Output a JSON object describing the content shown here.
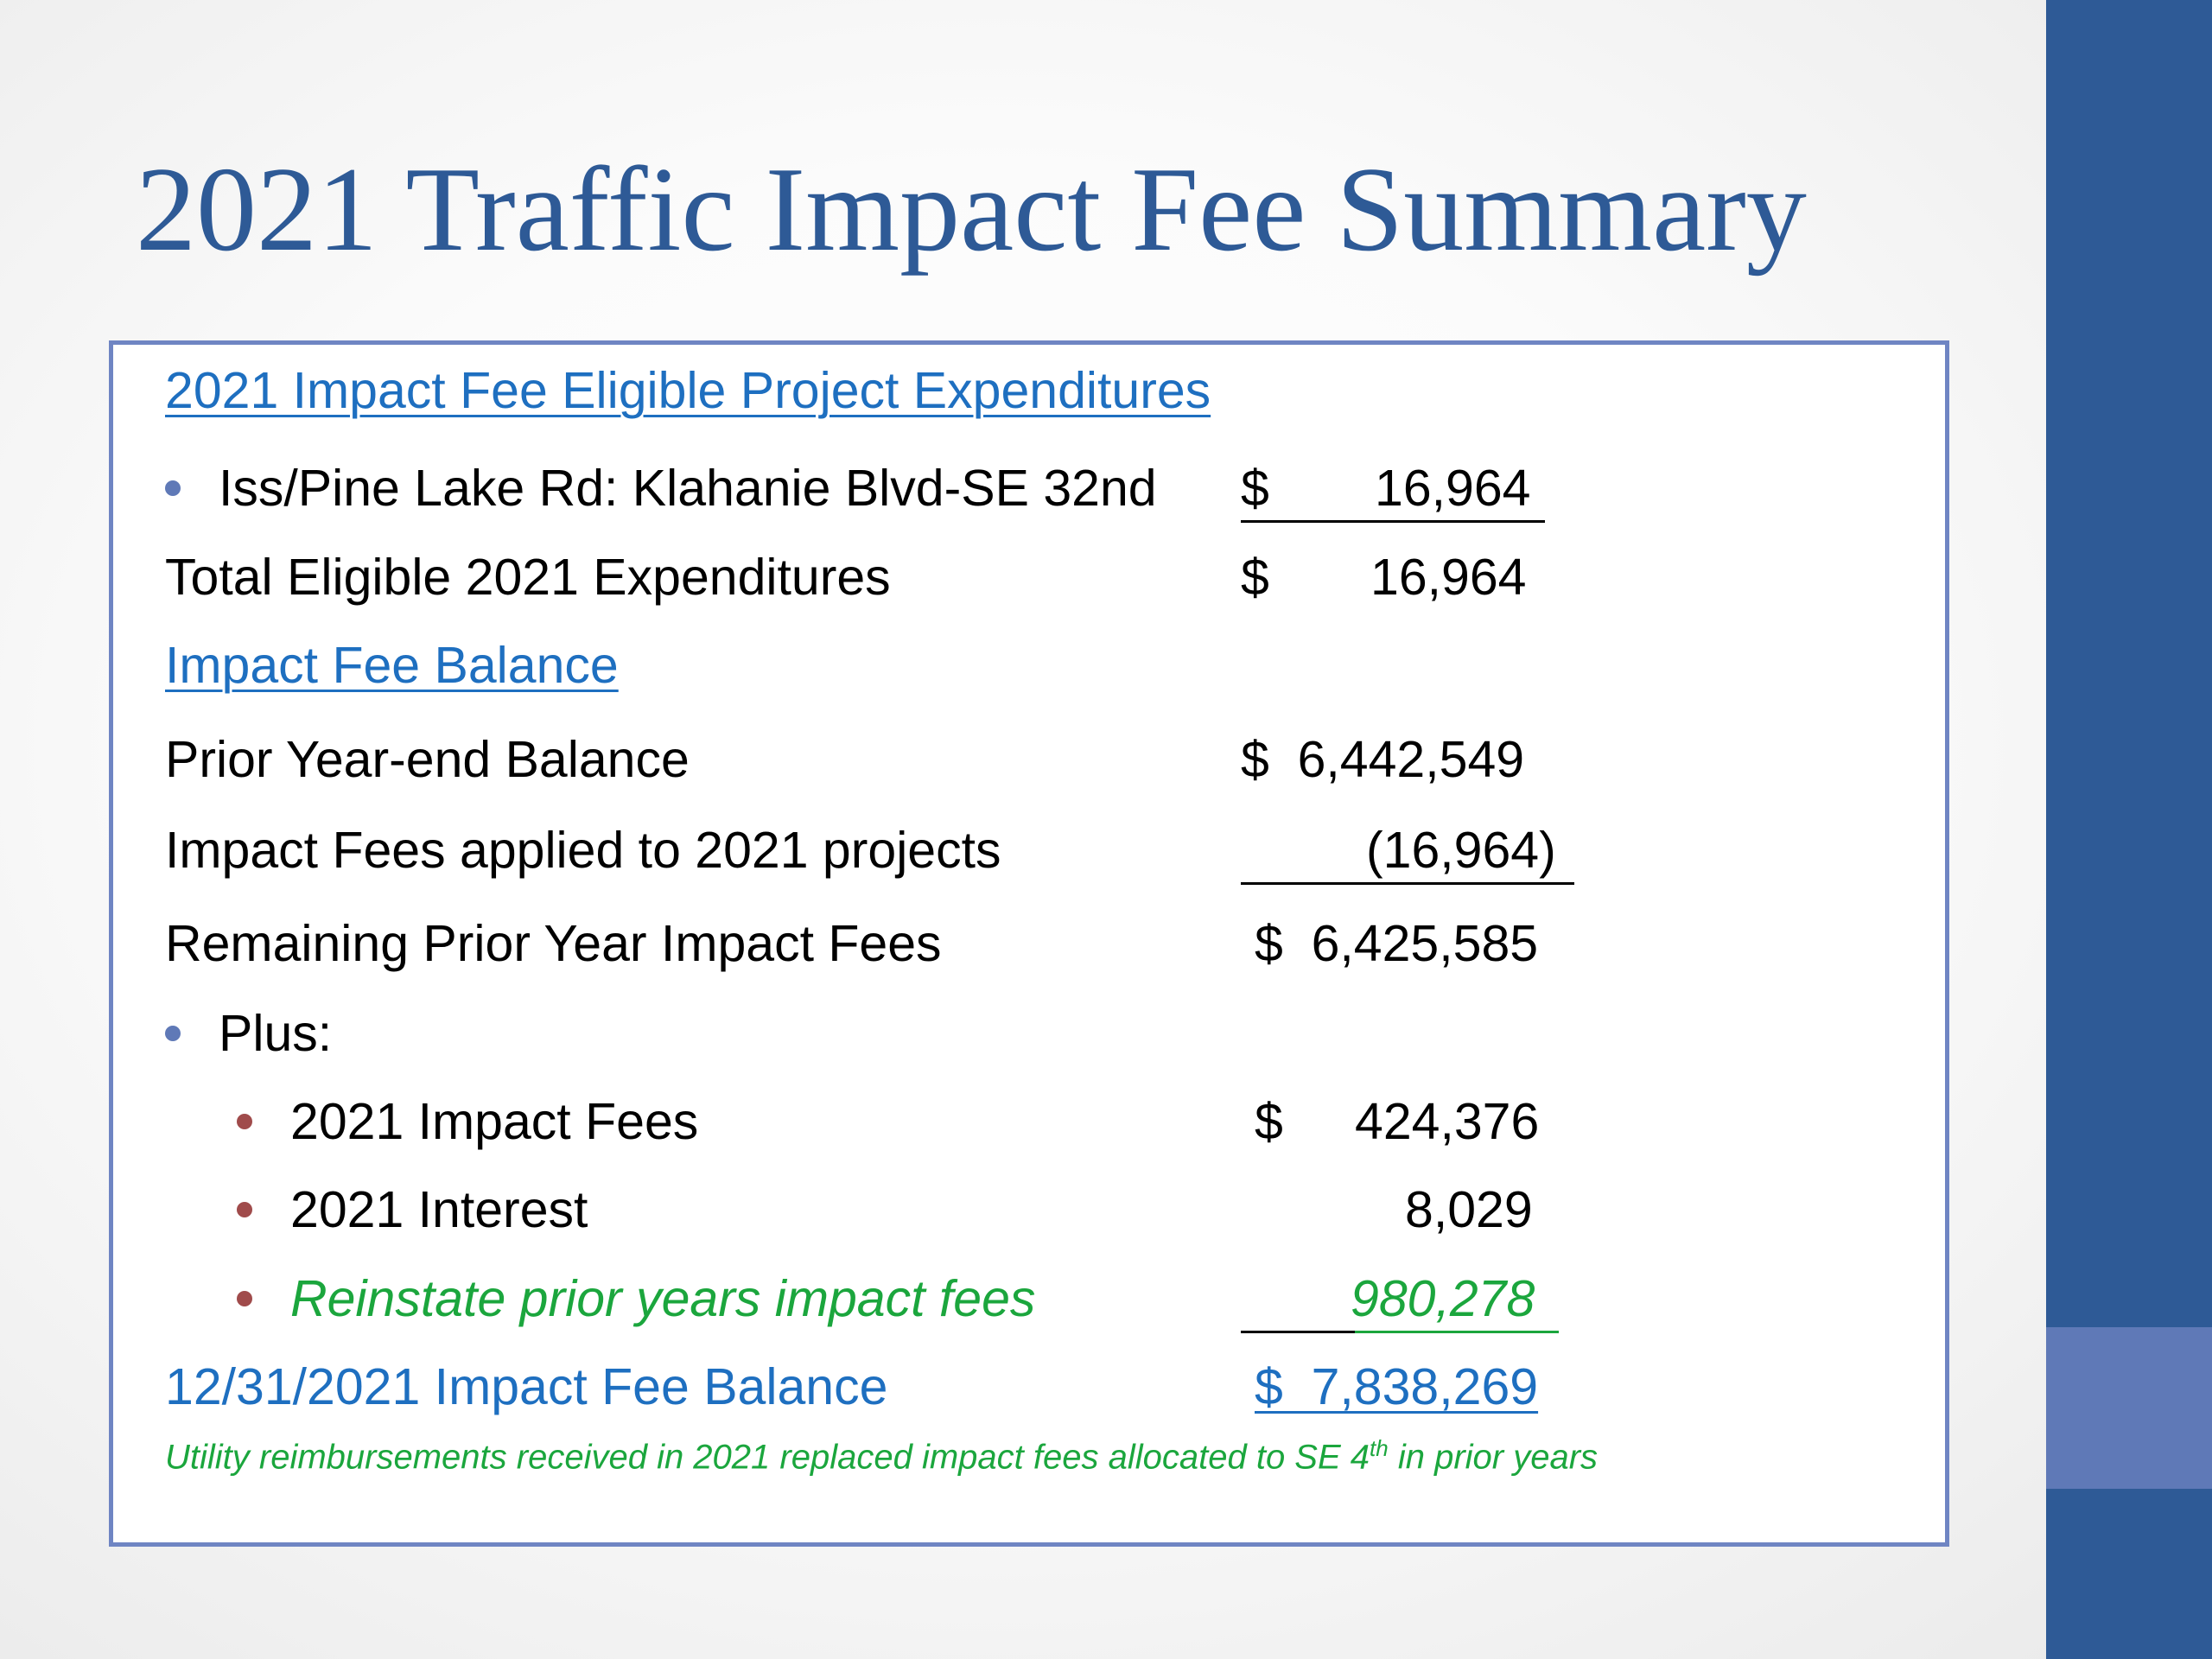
{
  "title": "2021 Traffic Impact Fee Summary",
  "sections": {
    "expenditures_heading": "2021 Impact Fee Eligible Project Expenditures",
    "balance_heading": "Impact Fee Balance"
  },
  "expenditures": {
    "project_label": "Iss/Pine Lake Rd: Klahanie Blvd-SE 32nd",
    "project_dollar": "$",
    "project_amount": "16,964",
    "total_label": "Total Eligible 2021 Expenditures",
    "total_dollar": "$",
    "total_amount": "16,964"
  },
  "balance": {
    "prior_label": "Prior Year-end Balance",
    "prior_amount": "$  6,442,549",
    "applied_label": "Impact Fees applied to 2021 projects",
    "applied_amount": "(16,964)",
    "remaining_label": "Remaining Prior Year Impact Fees",
    "remaining_amount": "$  6,425,585",
    "plus_label": "Plus:",
    "fees_label": "2021 Impact Fees",
    "fees_dollar": "$",
    "fees_amount": "424,376",
    "interest_label": "2021 Interest",
    "interest_amount": "8,029",
    "reinstate_label": "Reinstate prior years impact fees",
    "reinstate_amount": "980,278",
    "final_label": "12/31/2021 Impact Fee Balance",
    "final_amount": "$  7,838,269"
  },
  "footnote": {
    "before": "Utility reimbursements received in 2021 replaced impact fees allocated to SE 4",
    "superscript": "th",
    "after": " in prior years"
  },
  "colors": {
    "title": "#2e5a96",
    "heading_blue": "#1e6fc0",
    "green": "#1ba63d",
    "panel_border": "#6f85c3",
    "side_bar": "#2e5a96",
    "side_accent": "#5f79b7"
  }
}
